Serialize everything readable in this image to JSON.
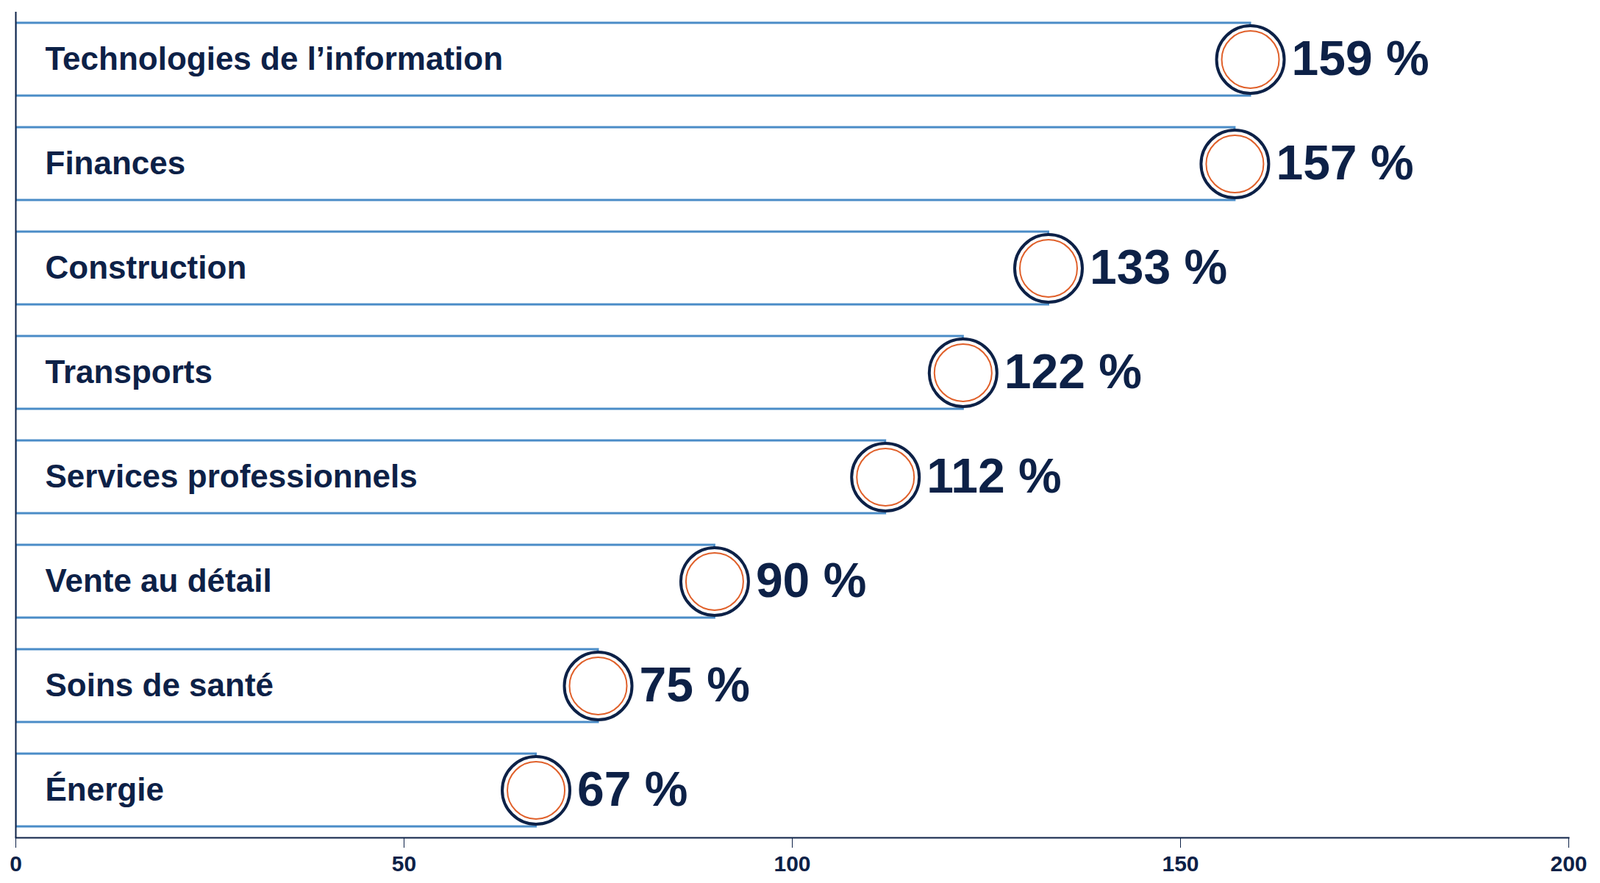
{
  "chart_data": {
    "type": "bar",
    "orientation": "horizontal",
    "categories": [
      "Technologies de l’information",
      "Finances",
      "Construction",
      "Transports",
      "Services professionnels",
      "Vente au détail",
      "Soins de santé",
      "Énergie"
    ],
    "values": [
      159,
      157,
      133,
      122,
      112,
      90,
      75,
      67
    ],
    "value_labels": [
      "159 %",
      "157 %",
      "133 %",
      "122 %",
      "112 %",
      "90 %",
      "75 %",
      "67 %"
    ],
    "data_labels": true,
    "color": "#4a8cc7",
    "xlim": [
      0,
      200
    ],
    "xticks": [
      0,
      50,
      100,
      150,
      200
    ],
    "grid": false,
    "tick_labels": "x"
  }
}
